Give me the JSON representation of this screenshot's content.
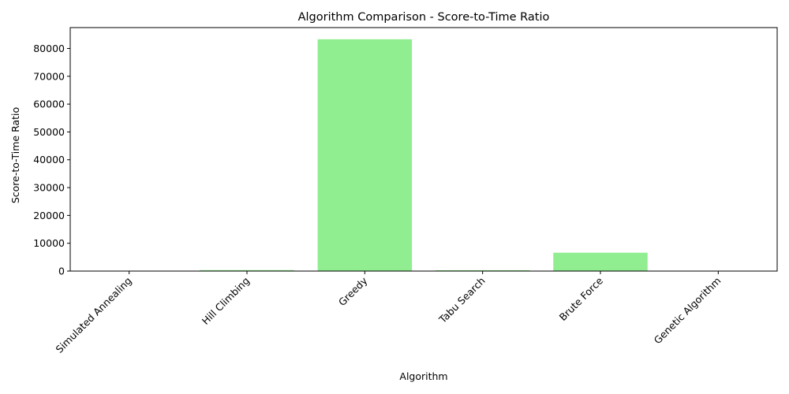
{
  "chart_data": {
    "type": "bar",
    "title": "Algorithm Comparison - Score-to-Time Ratio",
    "xlabel": "Algorithm",
    "ylabel": "Score-to-Time Ratio",
    "categories": [
      "Simulated Annealing",
      "Hill Climbing",
      "Greedy",
      "Tabu Search",
      "Brute Force",
      "Genetic Algorithm"
    ],
    "values": [
      20,
      350,
      83300,
      300,
      6600,
      10
    ],
    "yticks": [
      0,
      10000,
      20000,
      30000,
      40000,
      50000,
      60000,
      70000,
      80000
    ],
    "ylim": [
      0,
      87500
    ],
    "bar_color": "#90ee90",
    "grid": false,
    "legend": "none"
  }
}
